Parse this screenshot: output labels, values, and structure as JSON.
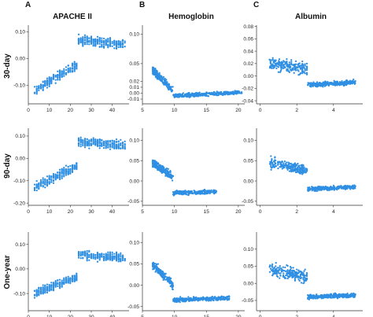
{
  "columns": [
    {
      "letter": "A",
      "title": "APACHE II"
    },
    {
      "letter": "B",
      "title": "Hemoglobin"
    },
    {
      "letter": "C",
      "title": "Albumin"
    }
  ],
  "rows": [
    {
      "label": "30-day"
    },
    {
      "label": "90-day"
    },
    {
      "label": "One-year"
    }
  ],
  "colors": {
    "points": "#2f8fe3",
    "axis": "#333333"
  },
  "chart_data": [
    {
      "type": "scatter",
      "row": 0,
      "col": 0,
      "xlim": [
        0,
        48
      ],
      "ylim": [
        -0.17,
        0.125
      ],
      "xticks": [
        0,
        10,
        20,
        30,
        40
      ],
      "yticks": [
        -0.1,
        0,
        0.1
      ],
      "ytick_labels": [
        "-0.10",
        "0.00",
        "0.10"
      ],
      "shape": "apache",
      "xmin": 3,
      "xmax": 46,
      "low": -0.12,
      "mid": -0.02,
      "high": 0.07,
      "spread": 0.025
    },
    {
      "type": "scatter",
      "row": 0,
      "col": 1,
      "xlim": [
        5,
        21
      ],
      "ylim": [
        -0.018,
        0.115
      ],
      "xticks": [
        5,
        10,
        15,
        20
      ],
      "yticks": [
        -0.01,
        0,
        0.01,
        0.02,
        0.05,
        0.1
      ],
      "ytick_labels": [
        "-0.01",
        "0.00",
        "0.01",
        "0.02",
        "0.05",
        "0.10"
      ],
      "shape": "hemo",
      "xmin": 6,
      "xmax": 20,
      "low": -0.005,
      "mid": 0.004,
      "high": 0.04,
      "spread": 0.008
    },
    {
      "type": "scatter",
      "row": 0,
      "col": 2,
      "xlim": [
        -0.2,
        5.6
      ],
      "ylim": [
        -0.045,
        0.082
      ],
      "xticks": [
        0,
        2,
        4
      ],
      "yticks": [
        -0.04,
        -0.02,
        0,
        0.02,
        0.04,
        0.06,
        0.08
      ],
      "ytick_labels": [
        "-0.04",
        "-0.02",
        "0.00",
        "0.02",
        "0.04",
        "0.06",
        "0.08"
      ],
      "shape": "alb",
      "xmin": 0.5,
      "xmax": 5.2,
      "low": -0.015,
      "mid": -0.012,
      "high": 0.02,
      "spread": 0.012
    },
    {
      "type": "scatter",
      "row": 1,
      "col": 0,
      "xlim": [
        0,
        48
      ],
      "ylim": [
        -0.21,
        0.135
      ],
      "xticks": [
        0,
        10,
        20,
        30,
        40
      ],
      "yticks": [
        -0.2,
        -0.1,
        0,
        0.1
      ],
      "ytick_labels": [
        "-0.20",
        "-0.10",
        "0.00",
        "0.10"
      ],
      "shape": "apache",
      "xmin": 3,
      "xmax": 46,
      "low": -0.13,
      "mid": -0.03,
      "high": 0.075,
      "spread": 0.03
    },
    {
      "type": "scatter",
      "row": 1,
      "col": 1,
      "xlim": [
        5,
        21
      ],
      "ylim": [
        -0.06,
        0.13
      ],
      "xticks": [
        5,
        10,
        15,
        20
      ],
      "yticks": [
        -0.05,
        0,
        0.05,
        0.1
      ],
      "ytick_labels": [
        "-0.05",
        "0.00",
        "0.05",
        "0.10"
      ],
      "shape": "hemo",
      "xmin": 6,
      "xmax": 16,
      "low": -0.03,
      "mid": 0.01,
      "high": 0.045,
      "spread": 0.012
    },
    {
      "type": "scatter",
      "row": 1,
      "col": 2,
      "xlim": [
        -0.2,
        5.6
      ],
      "ylim": [
        -0.06,
        0.13
      ],
      "xticks": [
        0,
        2,
        4
      ],
      "yticks": [
        -0.05,
        0,
        0.05,
        0.1
      ],
      "ytick_labels": [
        "-0.05",
        "0.00",
        "0.05",
        "0.10"
      ],
      "shape": "alb",
      "xmin": 0.5,
      "xmax": 5.2,
      "low": -0.02,
      "mid": -0.02,
      "high": 0.045,
      "spread": 0.015
    },
    {
      "type": "scatter",
      "row": 2,
      "col": 0,
      "xlim": [
        0,
        48
      ],
      "ylim": [
        -0.17,
        0.15
      ],
      "xticks": [
        0,
        10,
        20,
        30,
        40
      ],
      "yticks": [
        -0.1,
        0,
        0.1
      ],
      "ytick_labels": [
        "-0.10",
        "0.00",
        "0.10"
      ],
      "shape": "apache",
      "xmin": 3,
      "xmax": 46,
      "low": -0.1,
      "mid": -0.03,
      "high": 0.06,
      "spread": 0.025
    },
    {
      "type": "scatter",
      "row": 2,
      "col": 1,
      "xlim": [
        5,
        21
      ],
      "ylim": [
        -0.06,
        0.125
      ],
      "xticks": [
        5,
        10,
        15,
        20
      ],
      "yticks": [
        -0.05,
        0,
        0.05,
        0.1
      ],
      "ytick_labels": [
        "-0.05",
        "0.00",
        "0.05",
        "0.10"
      ],
      "shape": "hemo",
      "xmin": 6,
      "xmax": 18,
      "low": -0.035,
      "mid": 0.0,
      "high": 0.05,
      "spread": 0.012
    },
    {
      "type": "scatter",
      "row": 2,
      "col": 2,
      "xlim": [
        -0.2,
        5.6
      ],
      "ylim": [
        -0.08,
        0.15
      ],
      "xticks": [
        0,
        2,
        4
      ],
      "yticks": [
        -0.05,
        0,
        0.05,
        0.1
      ],
      "ytick_labels": [
        "-0.05",
        "0.00",
        "0.05",
        "0.10"
      ],
      "shape": "alb",
      "xmin": 0.5,
      "xmax": 5.2,
      "low": -0.04,
      "mid": -0.03,
      "high": 0.04,
      "spread": 0.02
    }
  ]
}
